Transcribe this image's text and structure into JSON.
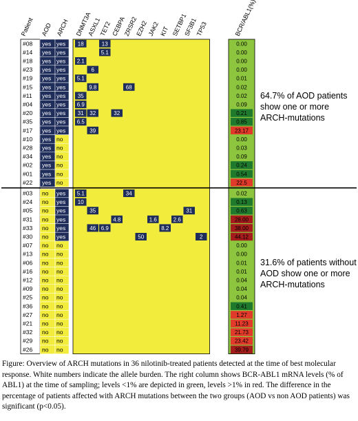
{
  "header": {
    "patient": "Patient",
    "aod": "AOD",
    "arch": "ARCH",
    "genes": [
      "DNMT3A",
      "ASXL1",
      "TET2",
      "CEBPA",
      "ZRSR2",
      "EZH2",
      "JAK2",
      "KIT",
      "SETBP1",
      "SF3B1",
      "TP53"
    ],
    "bcr": "BCR/ABL1(%)"
  },
  "rows": [
    {
      "patient": "#08",
      "aod": "yes",
      "arch": "yes",
      "muts": {
        "DNMT3A": "18",
        "TET2": "13"
      },
      "bcr": "0.00",
      "bcr_class": "low"
    },
    {
      "patient": "#14",
      "aod": "yes",
      "arch": "yes",
      "muts": {
        "TET2": "5.1"
      },
      "bcr": "0.00",
      "bcr_class": "low"
    },
    {
      "patient": "#18",
      "aod": "yes",
      "arch": "yes",
      "muts": {
        "DNMT3A": "2.1"
      },
      "bcr": "0.00",
      "bcr_class": "low"
    },
    {
      "patient": "#23",
      "aod": "yes",
      "arch": "yes",
      "muts": {
        "ASXL1": "6"
      },
      "bcr": "0.00",
      "bcr_class": "low"
    },
    {
      "patient": "#19",
      "aod": "yes",
      "arch": "yes",
      "muts": {
        "DNMT3A": "5.1"
      },
      "bcr": "0.01",
      "bcr_class": "low"
    },
    {
      "patient": "#15",
      "aod": "yes",
      "arch": "yes",
      "muts": {
        "ASXL1": "9.8",
        "ZRSR2": "68"
      },
      "bcr": "0.02",
      "bcr_class": "low"
    },
    {
      "patient": "#11",
      "aod": "yes",
      "arch": "yes",
      "muts": {
        "DNMT3A": "35"
      },
      "bcr": "0.02",
      "bcr_class": "low"
    },
    {
      "patient": "#04",
      "aod": "yes",
      "arch": "yes",
      "muts": {
        "DNMT3A": "6.9"
      },
      "bcr": "0.09",
      "bcr_class": "low"
    },
    {
      "patient": "#20",
      "aod": "yes",
      "arch": "yes",
      "muts": {
        "DNMT3A": "31",
        "ASXL1": "32",
        "CEBPA": "32"
      },
      "bcr": "0.21",
      "bcr_class": "low"
    },
    {
      "patient": "#35",
      "aod": "yes",
      "arch": "yes",
      "muts": {
        "DNMT3A": "6.5"
      },
      "bcr": "0.85",
      "bcr_class": "low"
    },
    {
      "patient": "#17",
      "aod": "yes",
      "arch": "yes",
      "muts": {
        "ASXL1": "39"
      },
      "bcr": "23.17",
      "bcr_class": "high"
    },
    {
      "patient": "#10",
      "aod": "yes",
      "arch": "no",
      "muts": {},
      "bcr": "0.00",
      "bcr_class": "low"
    },
    {
      "patient": "#28",
      "aod": "yes",
      "arch": "no",
      "muts": {},
      "bcr": "0.03",
      "bcr_class": "low"
    },
    {
      "patient": "#34",
      "aod": "yes",
      "arch": "no",
      "muts": {},
      "bcr": "0.09",
      "bcr_class": "low"
    },
    {
      "patient": "#02",
      "aod": "yes",
      "arch": "no",
      "muts": {},
      "bcr": "0.24",
      "bcr_class": "low"
    },
    {
      "patient": "#01",
      "aod": "yes",
      "arch": "no",
      "muts": {},
      "bcr": "0.54",
      "bcr_class": "low"
    },
    {
      "patient": "#22",
      "aod": "yes",
      "arch": "no",
      "muts": {},
      "bcr": "22.5",
      "bcr_class": "high"
    },
    {
      "patient": "#03",
      "aod": "no",
      "arch": "yes",
      "muts": {
        "DNMT3A": "5.1",
        "ZRSR2": "34"
      },
      "bcr": "0.02",
      "bcr_class": "low"
    },
    {
      "patient": "#24",
      "aod": "no",
      "arch": "yes",
      "muts": {
        "DNMT3A": "10"
      },
      "bcr": "0.13",
      "bcr_class": "low"
    },
    {
      "patient": "#05",
      "aod": "no",
      "arch": "yes",
      "muts": {
        "ASXL1": "35",
        "SF3B1": "31"
      },
      "bcr": "0.63",
      "bcr_class": "low"
    },
    {
      "patient": "#31",
      "aod": "no",
      "arch": "yes",
      "muts": {
        "CEBPA": "4.8",
        "JAK2": "1.6",
        "SETBP1": "2.6"
      },
      "bcr": "28.00",
      "bcr_class": "high"
    },
    {
      "patient": "#33",
      "aod": "no",
      "arch": "yes",
      "muts": {
        "ASXL1": "46",
        "TET2": "6.9",
        "KIT": "8.2"
      },
      "bcr": "38.00",
      "bcr_class": "high"
    },
    {
      "patient": "#30",
      "aod": "no",
      "arch": "yes",
      "muts": {
        "EZH2": "50",
        "TP53": "2"
      },
      "bcr": "44.12",
      "bcr_class": "high"
    },
    {
      "patient": "#07",
      "aod": "no",
      "arch": "no",
      "muts": {},
      "bcr": "0.00",
      "bcr_class": "low"
    },
    {
      "patient": "#13",
      "aod": "no",
      "arch": "no",
      "muts": {},
      "bcr": "0.00",
      "bcr_class": "low"
    },
    {
      "patient": "#06",
      "aod": "no",
      "arch": "no",
      "muts": {},
      "bcr": "0.01",
      "bcr_class": "low"
    },
    {
      "patient": "#16",
      "aod": "no",
      "arch": "no",
      "muts": {},
      "bcr": "0.01",
      "bcr_class": "low"
    },
    {
      "patient": "#12",
      "aod": "no",
      "arch": "no",
      "muts": {},
      "bcr": "0.04",
      "bcr_class": "low"
    },
    {
      "patient": "#09",
      "aod": "no",
      "arch": "no",
      "muts": {},
      "bcr": "0.04",
      "bcr_class": "low"
    },
    {
      "patient": "#25",
      "aod": "no",
      "arch": "no",
      "muts": {},
      "bcr": "0.04",
      "bcr_class": "low"
    },
    {
      "patient": "#36",
      "aod": "no",
      "arch": "no",
      "muts": {},
      "bcr": "0.41",
      "bcr_class": "low"
    },
    {
      "patient": "#27",
      "aod": "no",
      "arch": "no",
      "muts": {},
      "bcr": "1.27",
      "bcr_class": "high"
    },
    {
      "patient": "#21",
      "aod": "no",
      "arch": "no",
      "muts": {},
      "bcr": "11.23",
      "bcr_class": "high"
    },
    {
      "patient": "#32",
      "aod": "no",
      "arch": "no",
      "muts": {},
      "bcr": "21.73",
      "bcr_class": "high"
    },
    {
      "patient": "#29",
      "aod": "no",
      "arch": "no",
      "muts": {},
      "bcr": "23.42",
      "bcr_class": "high"
    },
    {
      "patient": "#26",
      "aod": "no",
      "arch": "no",
      "muts": {},
      "bcr": "39.79",
      "bcr_class": "high"
    }
  ],
  "notes": {
    "aod": "64.7% of AOD patients show one or more ARCH-mutations",
    "nonaod": "31.6% of patients without AOD show one or more ARCH-mutations"
  },
  "caption": "Figure: Overview of ARCH mutations in 36 nilotinib-treated patients detected at the time of best molecular response. White numbers indicate the allele burden. The right column shows BCR-ABL1 mRNA levels (% of ABL1) at the time of sampling; levels <1% are depicted in green, levels >1% in red. The difference in the percentage of patients affected with ARCH mutations between the two groups (AOD vs non AOD patients) was significant (p<0.05).",
  "colors": {
    "navy": "#1f2d5a",
    "yellow": "#f2ec3c",
    "green_bg": "#8dc53e",
    "green_dark": "#1f7a2e",
    "red_dark": "#a51c1c",
    "red_bright": "#e23a2a"
  }
}
